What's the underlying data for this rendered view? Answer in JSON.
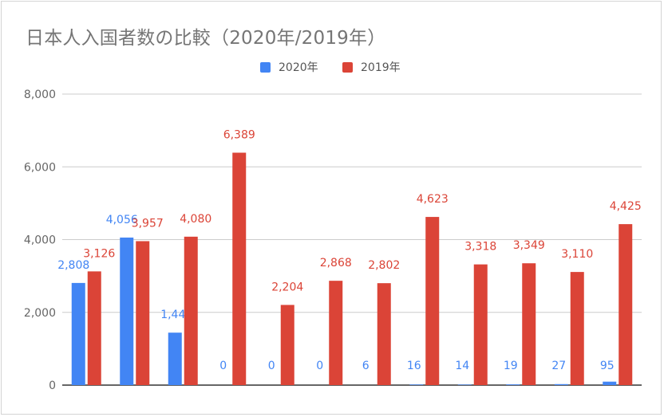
{
  "chart_data": {
    "type": "bar",
    "title": "日本人入国者数の比較（2020年/2019年）",
    "xlabel": "",
    "ylabel": "",
    "ylim": [
      0,
      8000
    ],
    "yticks": [
      "0",
      "2,000",
      "4,000",
      "6,000",
      "8,000"
    ],
    "grid": true,
    "legend_position": "top",
    "categories": [
      "",
      "",
      "",
      "",
      "",
      "",
      "",
      "",
      "",
      "",
      "",
      ""
    ],
    "series": [
      {
        "name": "2020年",
        "color": "#4285f4",
        "values": [
          2808,
          4056,
          1442,
          0,
          0,
          0,
          6,
          16,
          14,
          19,
          27,
          95
        ],
        "labels": [
          "2,808",
          "4,056",
          "1,442",
          "0",
          "0",
          "0",
          "6",
          "16",
          "14",
          "19",
          "27",
          "95"
        ]
      },
      {
        "name": "2019年",
        "color": "#db4437",
        "values": [
          3126,
          3957,
          4080,
          6389,
          2204,
          2868,
          2802,
          4623,
          3318,
          3349,
          3110,
          4425
        ],
        "labels": [
          "3,126",
          "3,957",
          "4,080",
          "6,389",
          "2,204",
          "2,868",
          "2,802",
          "4,623",
          "3,318",
          "3,349",
          "3,110",
          "4,425"
        ]
      }
    ]
  }
}
